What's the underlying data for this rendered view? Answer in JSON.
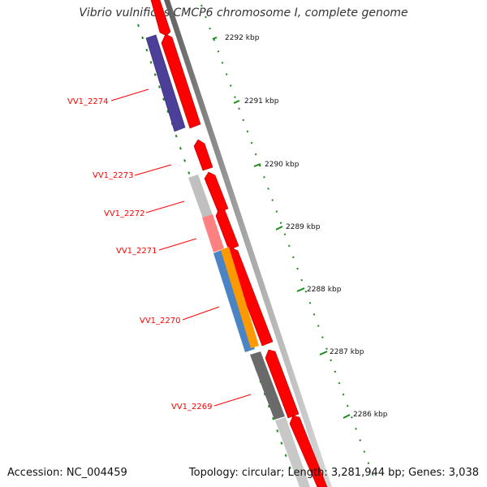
{
  "title": "Vibrio vulnificus CMCP6 chromosome I, complete genome",
  "footer": {
    "accession": "Accession: NC_004459",
    "topology_info": "Topology: circular; Length: 3,281,944 bp; Genes: 3,038"
  },
  "ruler": {
    "tick_labels": [
      "2292 kbp",
      "2291 kbp",
      "2290 kbp",
      "2289 kbp",
      "2288 kbp",
      "2287 kbp",
      "2286 kbp"
    ]
  },
  "genes": {
    "labels": [
      "VV1_2274",
      "VV1_2273",
      "VV1_2272",
      "VV1_2271",
      "VV1_2270",
      "VV1_2269"
    ]
  },
  "colors": {
    "forward_cds": "#ff0000",
    "backbone": "#808080",
    "ruler_tick": "#1a8a1a",
    "label": "#ff0000",
    "purple_feature": "#4b3f99",
    "blue_feature": "#4a84c4",
    "orange_feature": "#ff9900",
    "gray_feature": "#c0c0c0",
    "dark_gray_feature": "#6a6a6a",
    "pink_feature": "#ff8080"
  }
}
